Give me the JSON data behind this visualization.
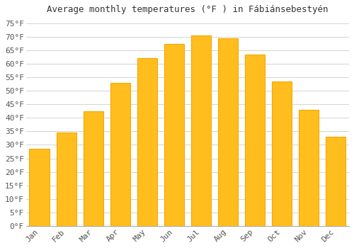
{
  "title": "Average monthly temperatures (°F ) in Fábiánsebestyén",
  "months": [
    "Jan",
    "Feb",
    "Mar",
    "Apr",
    "May",
    "Jun",
    "Jul",
    "Aug",
    "Sep",
    "Oct",
    "Nov",
    "Dec"
  ],
  "values": [
    28.5,
    34.5,
    42.5,
    53.0,
    62.0,
    67.5,
    70.5,
    69.5,
    63.5,
    53.5,
    43.0,
    33.0
  ],
  "bar_color_face": "#FFBE1E",
  "bar_color_edge": "#F5A800",
  "background_color": "#ffffff",
  "grid_color": "#cccccc",
  "title_fontsize": 9,
  "tick_fontsize": 8,
  "ylim": [
    0,
    77
  ],
  "yticks": [
    0,
    5,
    10,
    15,
    20,
    25,
    30,
    35,
    40,
    45,
    50,
    55,
    60,
    65,
    70,
    75
  ]
}
